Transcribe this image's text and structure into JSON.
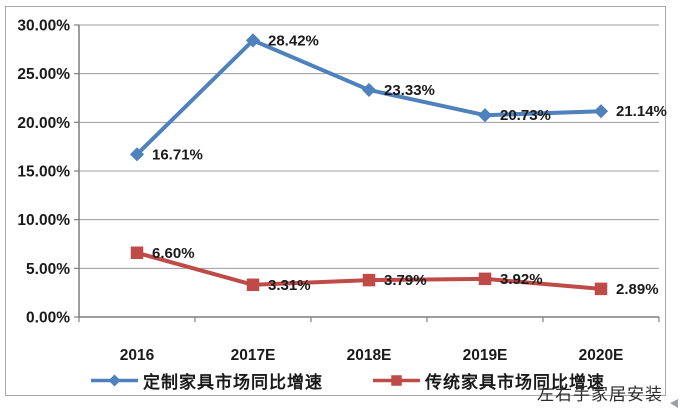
{
  "chart_data": {
    "type": "line",
    "title": "",
    "xlabel": "",
    "ylabel": "",
    "categories": [
      "2016",
      "2017E",
      "2018E",
      "2019E",
      "2020E"
    ],
    "series": [
      {
        "name": "定制家具市场同比增速",
        "values": [
          16.71,
          28.42,
          23.33,
          20.73,
          21.14
        ],
        "labels": [
          "16.71%",
          "28.42%",
          "23.33%",
          "20.73%",
          "21.14%"
        ],
        "color": "#4F81BD",
        "marker": "diamond"
      },
      {
        "name": "传统家具市场同比增速",
        "values": [
          6.6,
          3.31,
          3.79,
          3.92,
          2.89
        ],
        "labels": [
          "6.60%",
          "3.31%",
          "3.79%",
          "3.92%",
          "2.89%"
        ],
        "color": "#BE4B48",
        "marker": "square"
      }
    ],
    "ylim": [
      0,
      30
    ],
    "yticks": [
      0,
      5,
      10,
      15,
      20,
      25,
      30
    ],
    "ytick_labels": [
      "0.00%",
      "5.00%",
      "10.00%",
      "15.00%",
      "20.00%",
      "25.00%",
      "30.00%"
    ],
    "grid": "horizontal",
    "legend_position": "bottom"
  },
  "colors": {
    "grid": "#9c9c9c",
    "axis": "#7f7f7f",
    "label": "#1a1a1a",
    "frame_border": "#a8a8a8"
  },
  "watermark": {
    "text": "左右手家居安装"
  }
}
